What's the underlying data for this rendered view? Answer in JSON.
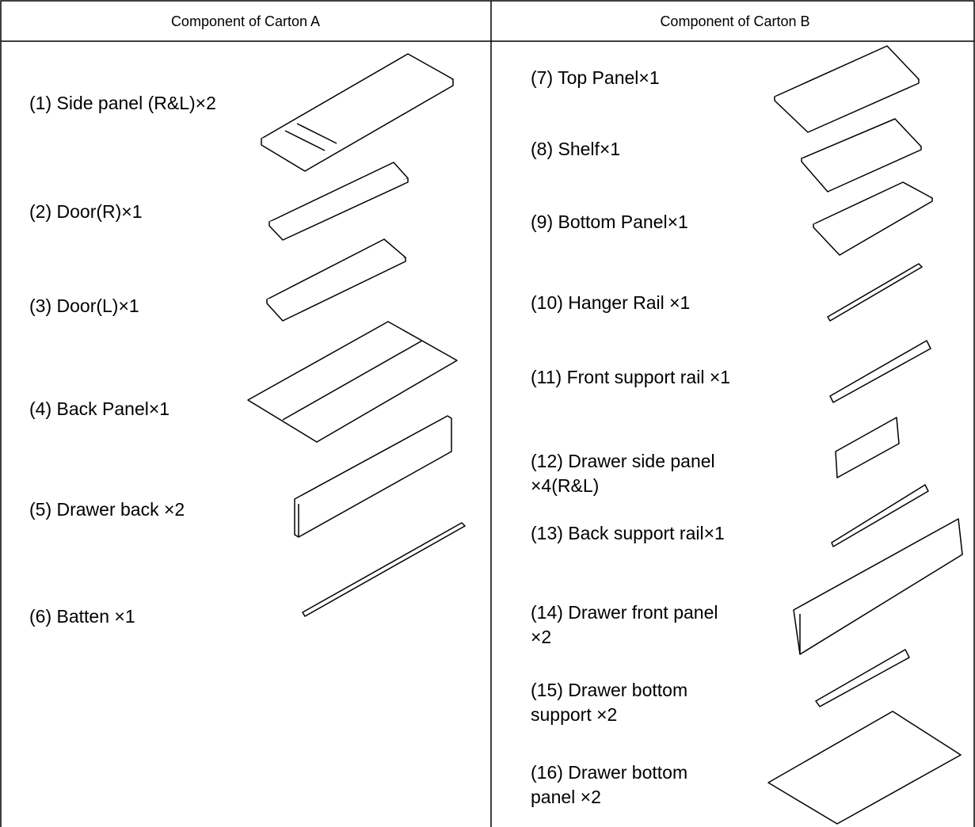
{
  "table": {
    "headers": [
      "Component of Carton A",
      "Component of Carton B"
    ],
    "carton_a": [
      [
        "(1) Side panel (R&L)×2"
      ],
      [
        "(2) Door(R)×1"
      ],
      [
        "(3) Door(L)×1"
      ],
      [
        "(4) Back Panel×1"
      ],
      [
        "(5) Drawer back ×2"
      ],
      [
        "(6) Batten ×1"
      ]
    ],
    "carton_b": [
      [
        "(7) Top Panel×1"
      ],
      [
        "(8) Shelf×1"
      ],
      [
        "(9) Bottom Panel×1"
      ],
      [
        "(10) Hanger Rail ×1"
      ],
      [
        "(11) Front support rail ×1"
      ],
      [
        "(12) Drawer side panel",
        " ×4(R&L)"
      ],
      [
        "(13) Back support rail×1"
      ],
      [
        "(14) Drawer front panel",
        "×2"
      ],
      [
        "(15) Drawer bottom",
        "support ×2"
      ],
      [
        "(16) Drawer bottom",
        "panel ×2"
      ]
    ]
  }
}
